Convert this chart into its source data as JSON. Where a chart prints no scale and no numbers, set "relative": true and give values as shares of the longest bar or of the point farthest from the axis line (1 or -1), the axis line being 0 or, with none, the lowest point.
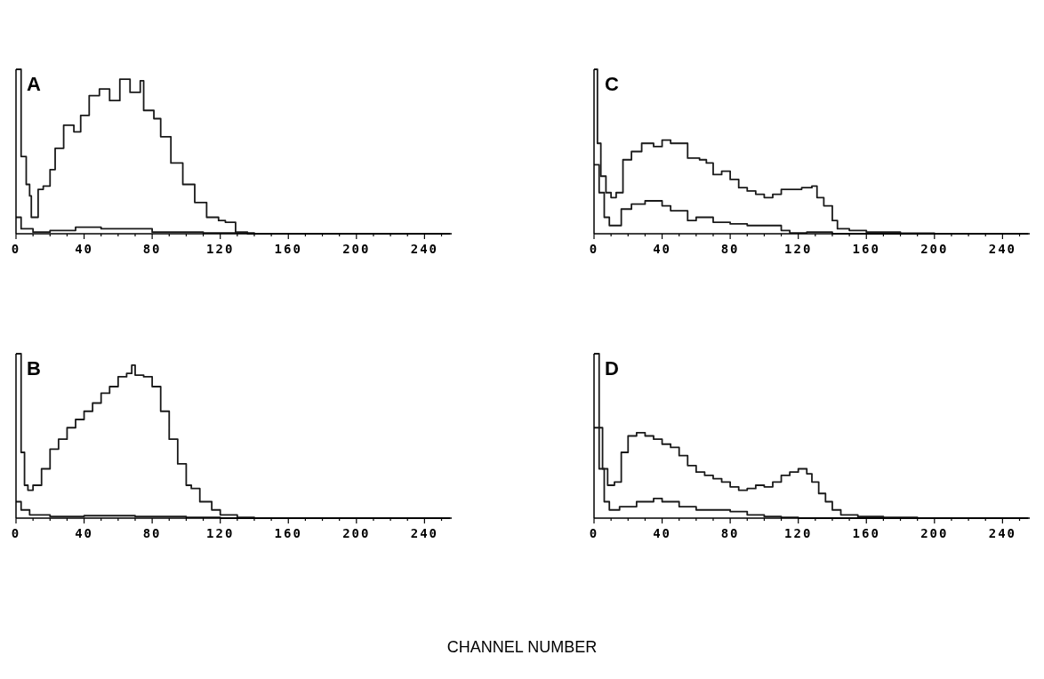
{
  "chart_data": [
    {
      "type": "step",
      "title": "A",
      "relative": true,
      "xlim": [
        0,
        256
      ],
      "xticks": [
        0,
        {
          "value": 10,
          "label": null
        },
        {
          "value": 20,
          "label": null
        },
        {
          "value": 30,
          "label": null
        },
        40,
        {
          "value": 50,
          "label": null
        },
        {
          "value": 60,
          "label": null
        },
        {
          "value": 70,
          "label": null
        },
        80,
        {
          "value": 90,
          "label": null
        },
        {
          "value": 100,
          "label": null
        },
        {
          "value": 110,
          "label": null
        },
        120,
        {
          "value": 130,
          "label": null
        },
        {
          "value": 140,
          "label": null
        },
        {
          "value": 150,
          "label": null
        },
        160,
        {
          "value": 170,
          "label": null
        },
        {
          "value": 180,
          "label": null
        },
        {
          "value": 190,
          "label": null
        },
        200,
        {
          "value": 210,
          "label": null
        },
        {
          "value": 220,
          "label": null
        },
        {
          "value": 230,
          "label": null
        },
        240,
        {
          "value": 250,
          "label": null
        }
      ],
      "grid": false,
      "marker": "none",
      "line_style": "solid",
      "series": [
        {
          "color": "#1a1a1a",
          "x": [
            0,
            1,
            3,
            6,
            8,
            9,
            13,
            16,
            20,
            23,
            28,
            34,
            38,
            43,
            49,
            55,
            61,
            67,
            73,
            75,
            81,
            85,
            91,
            98,
            105,
            112,
            119,
            123,
            129,
            136,
            255
          ],
          "values": [
            1.0,
            1.0,
            0.47,
            0.3,
            0.23,
            0.1,
            0.27,
            0.29,
            0.39,
            0.52,
            0.66,
            0.62,
            0.72,
            0.84,
            0.88,
            0.81,
            0.94,
            0.86,
            0.93,
            0.75,
            0.7,
            0.59,
            0.43,
            0.3,
            0.19,
            0.1,
            0.08,
            0.07,
            0.01,
            0,
            0
          ]
        },
        {
          "color": "#1a1a1a",
          "x": [
            0,
            1,
            3,
            10,
            20,
            35,
            50,
            80,
            110,
            140,
            255
          ],
          "values": [
            0.1,
            0.1,
            0.03,
            0.01,
            0.02,
            0.04,
            0.03,
            0.01,
            0.005,
            0,
            0
          ]
        }
      ]
    },
    {
      "type": "step",
      "title": "C",
      "relative": true,
      "xlim": [
        0,
        256
      ],
      "xticks": [
        0,
        {
          "value": 10,
          "label": null
        },
        {
          "value": 20,
          "label": null
        },
        {
          "value": 30,
          "label": null
        },
        40,
        {
          "value": 50,
          "label": null
        },
        {
          "value": 60,
          "label": null
        },
        {
          "value": 70,
          "label": null
        },
        80,
        {
          "value": 90,
          "label": null
        },
        {
          "value": 100,
          "label": null
        },
        {
          "value": 110,
          "label": null
        },
        120,
        {
          "value": 130,
          "label": null
        },
        {
          "value": 140,
          "label": null
        },
        {
          "value": 150,
          "label": null
        },
        160,
        {
          "value": 170,
          "label": null
        },
        {
          "value": 180,
          "label": null
        },
        {
          "value": 190,
          "label": null
        },
        200,
        {
          "value": 210,
          "label": null
        },
        {
          "value": 220,
          "label": null
        },
        {
          "value": 230,
          "label": null
        },
        240,
        {
          "value": 250,
          "label": null
        }
      ],
      "grid": false,
      "marker": "none",
      "line_style": "solid",
      "series": [
        {
          "color": "#1a1a1a",
          "x": [
            0,
            1,
            2,
            4,
            7,
            10,
            13,
            17,
            22,
            28,
            35,
            40,
            45,
            50,
            55,
            62,
            66,
            70,
            75,
            80,
            85,
            90,
            95,
            100,
            105,
            110,
            115,
            122,
            128,
            131,
            135,
            140,
            143,
            150,
            160,
            180,
            200,
            255
          ],
          "values": [
            1.0,
            1.0,
            0.55,
            0.35,
            0.25,
            0.22,
            0.25,
            0.45,
            0.5,
            0.55,
            0.53,
            0.57,
            0.55,
            0.55,
            0.46,
            0.45,
            0.43,
            0.36,
            0.38,
            0.33,
            0.28,
            0.26,
            0.24,
            0.22,
            0.24,
            0.27,
            0.27,
            0.28,
            0.29,
            0.22,
            0.17,
            0.08,
            0.03,
            0.02,
            0.01,
            0.003,
            0,
            0
          ]
        },
        {
          "color": "#1a1a1a",
          "x": [
            0,
            1,
            3,
            6,
            9,
            12,
            16,
            22,
            30,
            40,
            45,
            50,
            55,
            60,
            70,
            80,
            90,
            100,
            110,
            115,
            125,
            140,
            255
          ],
          "values": [
            0.42,
            0.42,
            0.25,
            0.1,
            0.05,
            0.05,
            0.15,
            0.18,
            0.2,
            0.17,
            0.14,
            0.14,
            0.08,
            0.1,
            0.07,
            0.06,
            0.05,
            0.05,
            0.02,
            0.005,
            0.01,
            0,
            0
          ]
        }
      ]
    },
    {
      "type": "step",
      "title": "B",
      "relative": true,
      "xlim": [
        0,
        256
      ],
      "xticks": [
        0,
        {
          "value": 10,
          "label": null
        },
        {
          "value": 20,
          "label": null
        },
        {
          "value": 30,
          "label": null
        },
        40,
        {
          "value": 50,
          "label": null
        },
        {
          "value": 60,
          "label": null
        },
        {
          "value": 70,
          "label": null
        },
        80,
        {
          "value": 90,
          "label": null
        },
        {
          "value": 100,
          "label": null
        },
        {
          "value": 110,
          "label": null
        },
        120,
        {
          "value": 130,
          "label": null
        },
        {
          "value": 140,
          "label": null
        },
        {
          "value": 150,
          "label": null
        },
        160,
        {
          "value": 170,
          "label": null
        },
        {
          "value": 180,
          "label": null
        },
        {
          "value": 190,
          "label": null
        },
        200,
        {
          "value": 210,
          "label": null
        },
        {
          "value": 220,
          "label": null
        },
        {
          "value": 230,
          "label": null
        },
        240,
        {
          "value": 250,
          "label": null
        }
      ],
      "grid": false,
      "marker": "none",
      "line_style": "solid",
      "series": [
        {
          "color": "#1a1a1a",
          "x": [
            0,
            1,
            3,
            5,
            7,
            10,
            15,
            20,
            25,
            30,
            35,
            40,
            45,
            50,
            55,
            60,
            65,
            68,
            70,
            75,
            80,
            85,
            90,
            95,
            100,
            103,
            108,
            115,
            120,
            130,
            140,
            255
          ],
          "values": [
            1.0,
            1.0,
            0.4,
            0.2,
            0.17,
            0.2,
            0.3,
            0.42,
            0.48,
            0.55,
            0.6,
            0.65,
            0.7,
            0.76,
            0.8,
            0.86,
            0.88,
            0.93,
            0.87,
            0.86,
            0.8,
            0.65,
            0.48,
            0.33,
            0.2,
            0.18,
            0.1,
            0.05,
            0.02,
            0.005,
            0,
            0
          ]
        },
        {
          "color": "#1a1a1a",
          "x": [
            0,
            1,
            3,
            8,
            20,
            40,
            70,
            100,
            120,
            255
          ],
          "values": [
            0.1,
            0.1,
            0.05,
            0.02,
            0.01,
            0.015,
            0.01,
            0.005,
            0,
            0
          ]
        }
      ]
    },
    {
      "type": "step",
      "title": "D",
      "xlabel": "CHANNEL NUMBER",
      "relative": true,
      "xlim": [
        0,
        256
      ],
      "xticks": [
        0,
        {
          "value": 10,
          "label": null
        },
        {
          "value": 20,
          "label": null
        },
        {
          "value": 30,
          "label": null
        },
        40,
        {
          "value": 50,
          "label": null
        },
        {
          "value": 60,
          "label": null
        },
        {
          "value": 70,
          "label": null
        },
        80,
        {
          "value": 90,
          "label": null
        },
        {
          "value": 100,
          "label": null
        },
        {
          "value": 110,
          "label": null
        },
        120,
        {
          "value": 130,
          "label": null
        },
        {
          "value": 140,
          "label": null
        },
        {
          "value": 150,
          "label": null
        },
        160,
        {
          "value": 170,
          "label": null
        },
        {
          "value": 180,
          "label": null
        },
        {
          "value": 190,
          "label": null
        },
        200,
        {
          "value": 210,
          "label": null
        },
        {
          "value": 220,
          "label": null
        },
        {
          "value": 230,
          "label": null
        },
        240,
        {
          "value": 250,
          "label": null
        }
      ],
      "grid": false,
      "marker": "none",
      "line_style": "solid",
      "series": [
        {
          "color": "#1a1a1a",
          "x": [
            0,
            1,
            3,
            5,
            8,
            12,
            16,
            20,
            25,
            30,
            35,
            40,
            45,
            50,
            55,
            60,
            65,
            70,
            75,
            80,
            85,
            90,
            95,
            100,
            105,
            110,
            115,
            120,
            125,
            128,
            132,
            136,
            140,
            145,
            155,
            170,
            190,
            255
          ],
          "values": [
            1.0,
            1.0,
            0.55,
            0.3,
            0.2,
            0.22,
            0.4,
            0.5,
            0.52,
            0.5,
            0.48,
            0.45,
            0.43,
            0.38,
            0.32,
            0.28,
            0.26,
            0.24,
            0.22,
            0.19,
            0.17,
            0.18,
            0.2,
            0.19,
            0.22,
            0.26,
            0.28,
            0.3,
            0.27,
            0.22,
            0.15,
            0.1,
            0.05,
            0.02,
            0.01,
            0.005,
            0,
            0
          ]
        },
        {
          "color": "#1a1a1a",
          "x": [
            0,
            1,
            3,
            6,
            9,
            15,
            25,
            35,
            40,
            50,
            60,
            70,
            80,
            90,
            100,
            110,
            120,
            255
          ],
          "values": [
            0.55,
            0.55,
            0.3,
            0.1,
            0.05,
            0.07,
            0.1,
            0.12,
            0.1,
            0.07,
            0.05,
            0.05,
            0.04,
            0.02,
            0.01,
            0.005,
            0,
            0
          ]
        }
      ]
    }
  ]
}
